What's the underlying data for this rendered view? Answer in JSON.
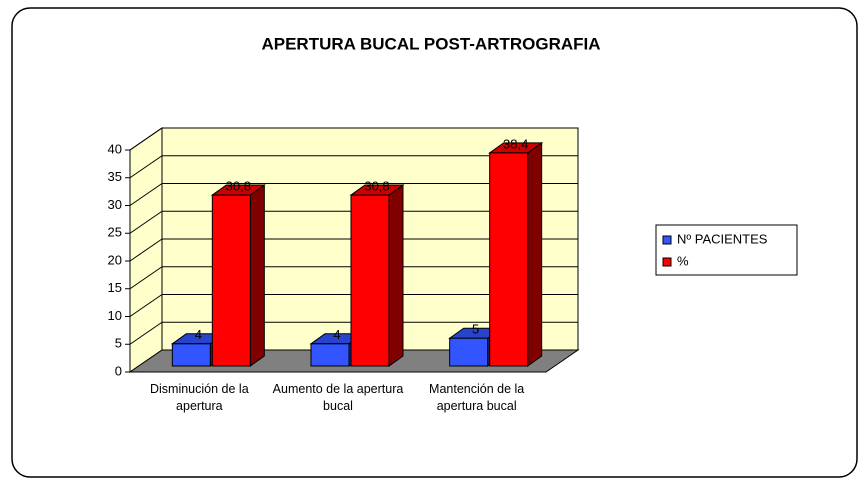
{
  "chart_data": {
    "type": "bar3d",
    "title": "APERTURA BUCAL POST-ARTROGRAFIA",
    "categories": [
      "Disminución de la apertura",
      "Aumento de la apertura bucal",
      "Mantención de la apertura bucal"
    ],
    "series": [
      {
        "name": "Nº PACIENTES",
        "color": "#3355ff",
        "values": [
          4,
          4,
          5
        ]
      },
      {
        "name": "%",
        "color": "#ff0000",
        "values": [
          30.8,
          30.8,
          38.4
        ],
        "value_labels": [
          "30,8",
          "30,8",
          "38,4"
        ]
      }
    ],
    "ylim": [
      0,
      40
    ],
    "yticks": [
      0,
      5,
      10,
      15,
      20,
      25,
      30,
      35,
      40
    ],
    "grid": true,
    "legend": "right"
  }
}
